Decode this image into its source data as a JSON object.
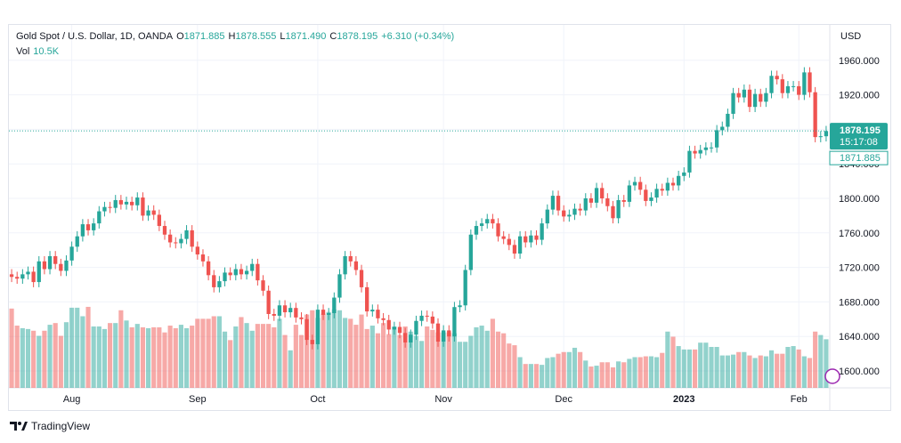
{
  "header": {
    "symbol": "Gold Spot / U.S. Dollar, 1D, OANDA",
    "o_label": "O",
    "o_value": "1871.885",
    "h_label": "H",
    "h_value": "1878.555",
    "l_label": "L",
    "l_value": "1871.490",
    "c_label": "C",
    "c_value": "1878.195",
    "change": "+6.310 (+0.34%)",
    "vol_label": "Vol",
    "vol_value": "10.5K"
  },
  "footer": {
    "brand": "TradingView",
    "logo_text": "17"
  },
  "colors": {
    "up": "#26a69a",
    "down": "#ef5350",
    "grid": "#f0f3fa",
    "axis_text": "#131722"
  },
  "chart_data": {
    "type": "candlestick",
    "title": "Gold Spot / U.S. Dollar, 1D, OANDA",
    "currency_label": "USD",
    "ylim": [
      1575,
      1985
    ],
    "yticks": [
      "1600.000",
      "1640.000",
      "1680.000",
      "1720.000",
      "1760.000",
      "1800.000",
      "1840.000",
      "1880.000",
      "1920.000",
      "1960.000"
    ],
    "x_ticks": [
      {
        "label": "Aug",
        "index": 11
      },
      {
        "label": "Sep",
        "index": 34
      },
      {
        "label": "Oct",
        "index": 56
      },
      {
        "label": "Nov",
        "index": 79
      },
      {
        "label": "Dec",
        "index": 101
      },
      {
        "label": "2023",
        "index": 123
      },
      {
        "label": "Feb",
        "index": 144
      }
    ],
    "current_price": {
      "value": 1878.195,
      "label": "1878.195",
      "countdown": "15:17:08",
      "open_label": "1871.885"
    },
    "closes": [
      1709,
      1707,
      1712,
      1715,
      1703,
      1727,
      1718,
      1733,
      1724,
      1716,
      1728,
      1744,
      1756,
      1770,
      1763,
      1771,
      1785,
      1790,
      1789,
      1798,
      1793,
      1796,
      1792,
      1801,
      1780,
      1786,
      1781,
      1768,
      1758,
      1749,
      1748,
      1753,
      1763,
      1744,
      1735,
      1727,
      1711,
      1697,
      1704,
      1714,
      1711,
      1718,
      1712,
      1716,
      1724,
      1705,
      1693,
      1666,
      1664,
      1676,
      1668,
      1673,
      1662,
      1660,
      1636,
      1631,
      1671,
      1665,
      1667,
      1685,
      1712,
      1733,
      1727,
      1717,
      1697,
      1669,
      1671,
      1661,
      1659,
      1648,
      1651,
      1644,
      1633,
      1642,
      1658,
      1664,
      1663,
      1655,
      1634,
      1647,
      1640,
      1674,
      1676,
      1717,
      1758,
      1768,
      1771,
      1776,
      1771,
      1756,
      1753,
      1746,
      1736,
      1756,
      1749,
      1757,
      1752,
      1771,
      1787,
      1803,
      1786,
      1779,
      1781,
      1788,
      1786,
      1800,
      1795,
      1812,
      1800,
      1791,
      1777,
      1798,
      1796,
      1815,
      1819,
      1810,
      1797,
      1801,
      1811,
      1809,
      1818,
      1815,
      1826,
      1830,
      1855,
      1852,
      1856,
      1859,
      1859,
      1879,
      1883,
      1898,
      1922,
      1917,
      1926,
      1906,
      1921,
      1912,
      1922,
      1942,
      1938,
      1922,
      1930,
      1930,
      1920,
      1946,
      1923,
      1871,
      1872,
      1878
    ],
    "volumes": [
      9.3,
      7.3,
      7.0,
      6.9,
      6.7,
      6.1,
      6.7,
      7.4,
      7.6,
      6.1,
      7.7,
      9.4,
      9.4,
      8.4,
      9.5,
      7.2,
      7.2,
      6.9,
      7.6,
      7.6,
      9.1,
      7.9,
      7.1,
      7.5,
      7.1,
      7.0,
      7.1,
      7.1,
      6.5,
      7.3,
      7.0,
      7.4,
      7.0,
      7.3,
      8.1,
      8.1,
      8.1,
      8.4,
      8.4,
      6.6,
      5.6,
      7.2,
      8.3,
      7.6,
      6.7,
      7.5,
      7.5,
      7.5,
      7.1,
      8.1,
      6.2,
      4.4,
      7.4,
      6.2,
      8.6,
      9.1,
      8.2,
      8.7,
      8.9,
      9.2,
      9.1,
      8.2,
      8.1,
      7.4,
      8.6,
      6.9,
      7.3,
      6.4,
      7.6,
      6.3,
      7.2,
      6.2,
      7.2,
      6.6,
      6.1,
      5.5,
      7.2,
      6.8,
      6.5,
      6.5,
      6.5,
      6.4,
      5.4,
      5.4,
      6.1,
      7.1,
      7.3,
      6.7,
      8.1,
      6.6,
      6.4,
      5.2,
      5.0,
      3.6,
      2.8,
      2.8,
      2.8,
      2.7,
      3.5,
      3.6,
      4.0,
      4.2,
      4.2,
      4.7,
      4.2,
      3.2,
      2.5,
      2.6,
      3.0,
      3.0,
      2.4,
      3.1,
      3.0,
      3.4,
      3.6,
      3.6,
      3.7,
      3.7,
      3.6,
      4.1,
      6.6,
      6.0,
      4.9,
      4.5,
      4.5,
      4.5,
      5.3,
      5.3,
      4.8,
      4.8,
      3.8,
      3.8,
      3.9,
      4.2,
      4.2,
      3.8,
      3.5,
      3.8,
      3.7,
      4.4,
      4.0,
      4.0,
      4.8,
      4.9,
      4.5,
      3.7,
      3.5,
      6.6,
      6.2,
      5.7
    ]
  }
}
